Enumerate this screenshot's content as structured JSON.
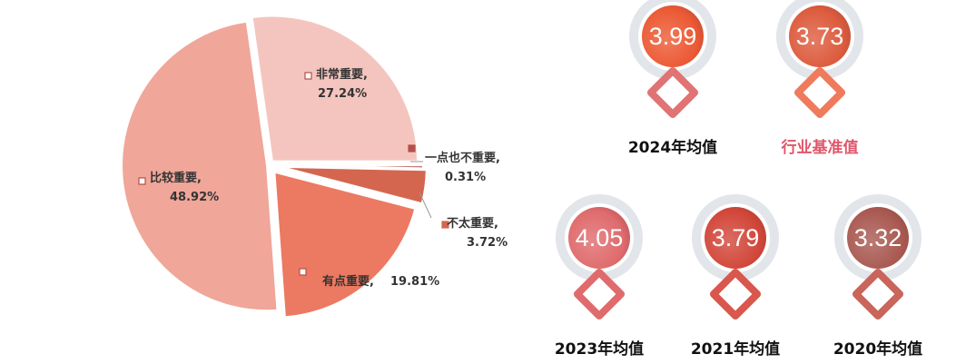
{
  "chart_data": {
    "type": "pie",
    "slices": [
      {
        "label": "非常重要,",
        "value": 27.24,
        "pct": "27.24%",
        "color": "#f4c5be"
      },
      {
        "label": "一点也不重要,",
        "value": 0.31,
        "pct": "0.31%",
        "color": "#b5504a"
      },
      {
        "label": "不太重要,",
        "value": 3.72,
        "pct": "3.72%",
        "color": "#d4664f"
      },
      {
        "label": "有点重要,",
        "value": 19.81,
        "pct": "19.81%",
        "color": "#ec7961"
      },
      {
        "label": "比较重要,",
        "value": 48.92,
        "pct": "48.92%",
        "color": "#f0a698"
      }
    ]
  },
  "badges": [
    {
      "value": "3.99",
      "caption": "2024年均值",
      "color": "#ec5a35",
      "caption_color": "#111",
      "diamond": "#e07474"
    },
    {
      "value": "3.73",
      "caption": "行业基准值",
      "color": "#dd5c3e",
      "caption_color": "#e0566a",
      "diamond": "#ef7a5c"
    },
    {
      "value": "4.05",
      "caption": "2023年均值",
      "color": "#df6b6d",
      "caption_color": "#111",
      "diamond": "#df6b6d"
    },
    {
      "value": "3.79",
      "caption": "2021年均值",
      "color": "#d2473a",
      "caption_color": "#111",
      "diamond": "#d9574c"
    },
    {
      "value": "3.32",
      "caption": "2020年均值",
      "color": "#a95a52",
      "caption_color": "#111",
      "diamond": "#c9655a"
    }
  ]
}
